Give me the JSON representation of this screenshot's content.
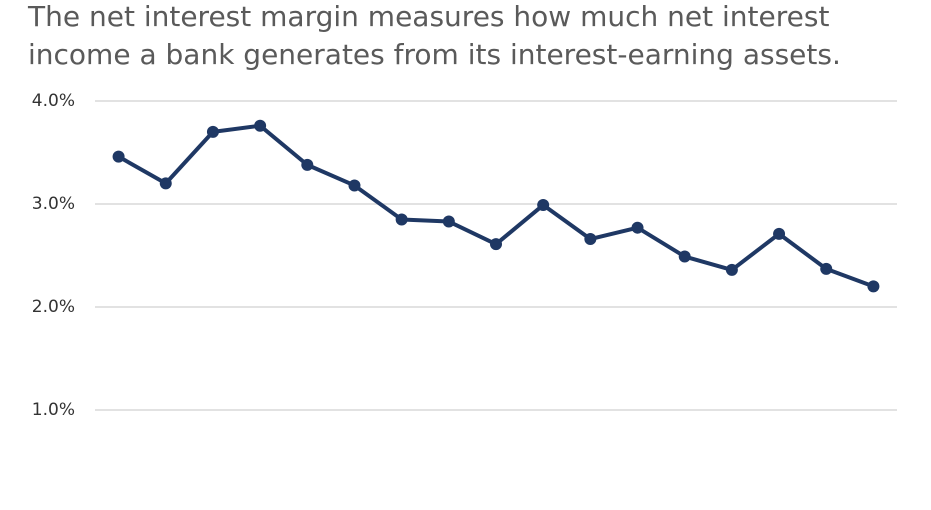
{
  "chart_data": {
    "type": "line",
    "title": [
      "The net interest margin measures  how much net interest",
      "income a bank generates from its interest-earning assets."
    ],
    "categories": [
      null,
      null,
      null,
      null,
      null,
      null,
      null,
      null,
      null,
      null,
      null,
      null,
      null,
      null,
      null,
      null,
      null
    ],
    "values": [
      3.46,
      3.2,
      3.7,
      3.76,
      3.38,
      3.18,
      2.85,
      2.83,
      2.61,
      2.99,
      2.66,
      2.77,
      2.49,
      2.36,
      2.71,
      2.37,
      2.2
    ],
    "color": "#1f3864",
    "ylim": [
      0.1,
      4
    ],
    "yticks": [
      {
        "value": 1,
        "label": "1.0%"
      },
      {
        "value": 2,
        "label": "2.0%"
      },
      {
        "value": 3,
        "label": "3.0%"
      },
      {
        "value": 4,
        "label": "4.0%"
      }
    ],
    "grid": true
  }
}
